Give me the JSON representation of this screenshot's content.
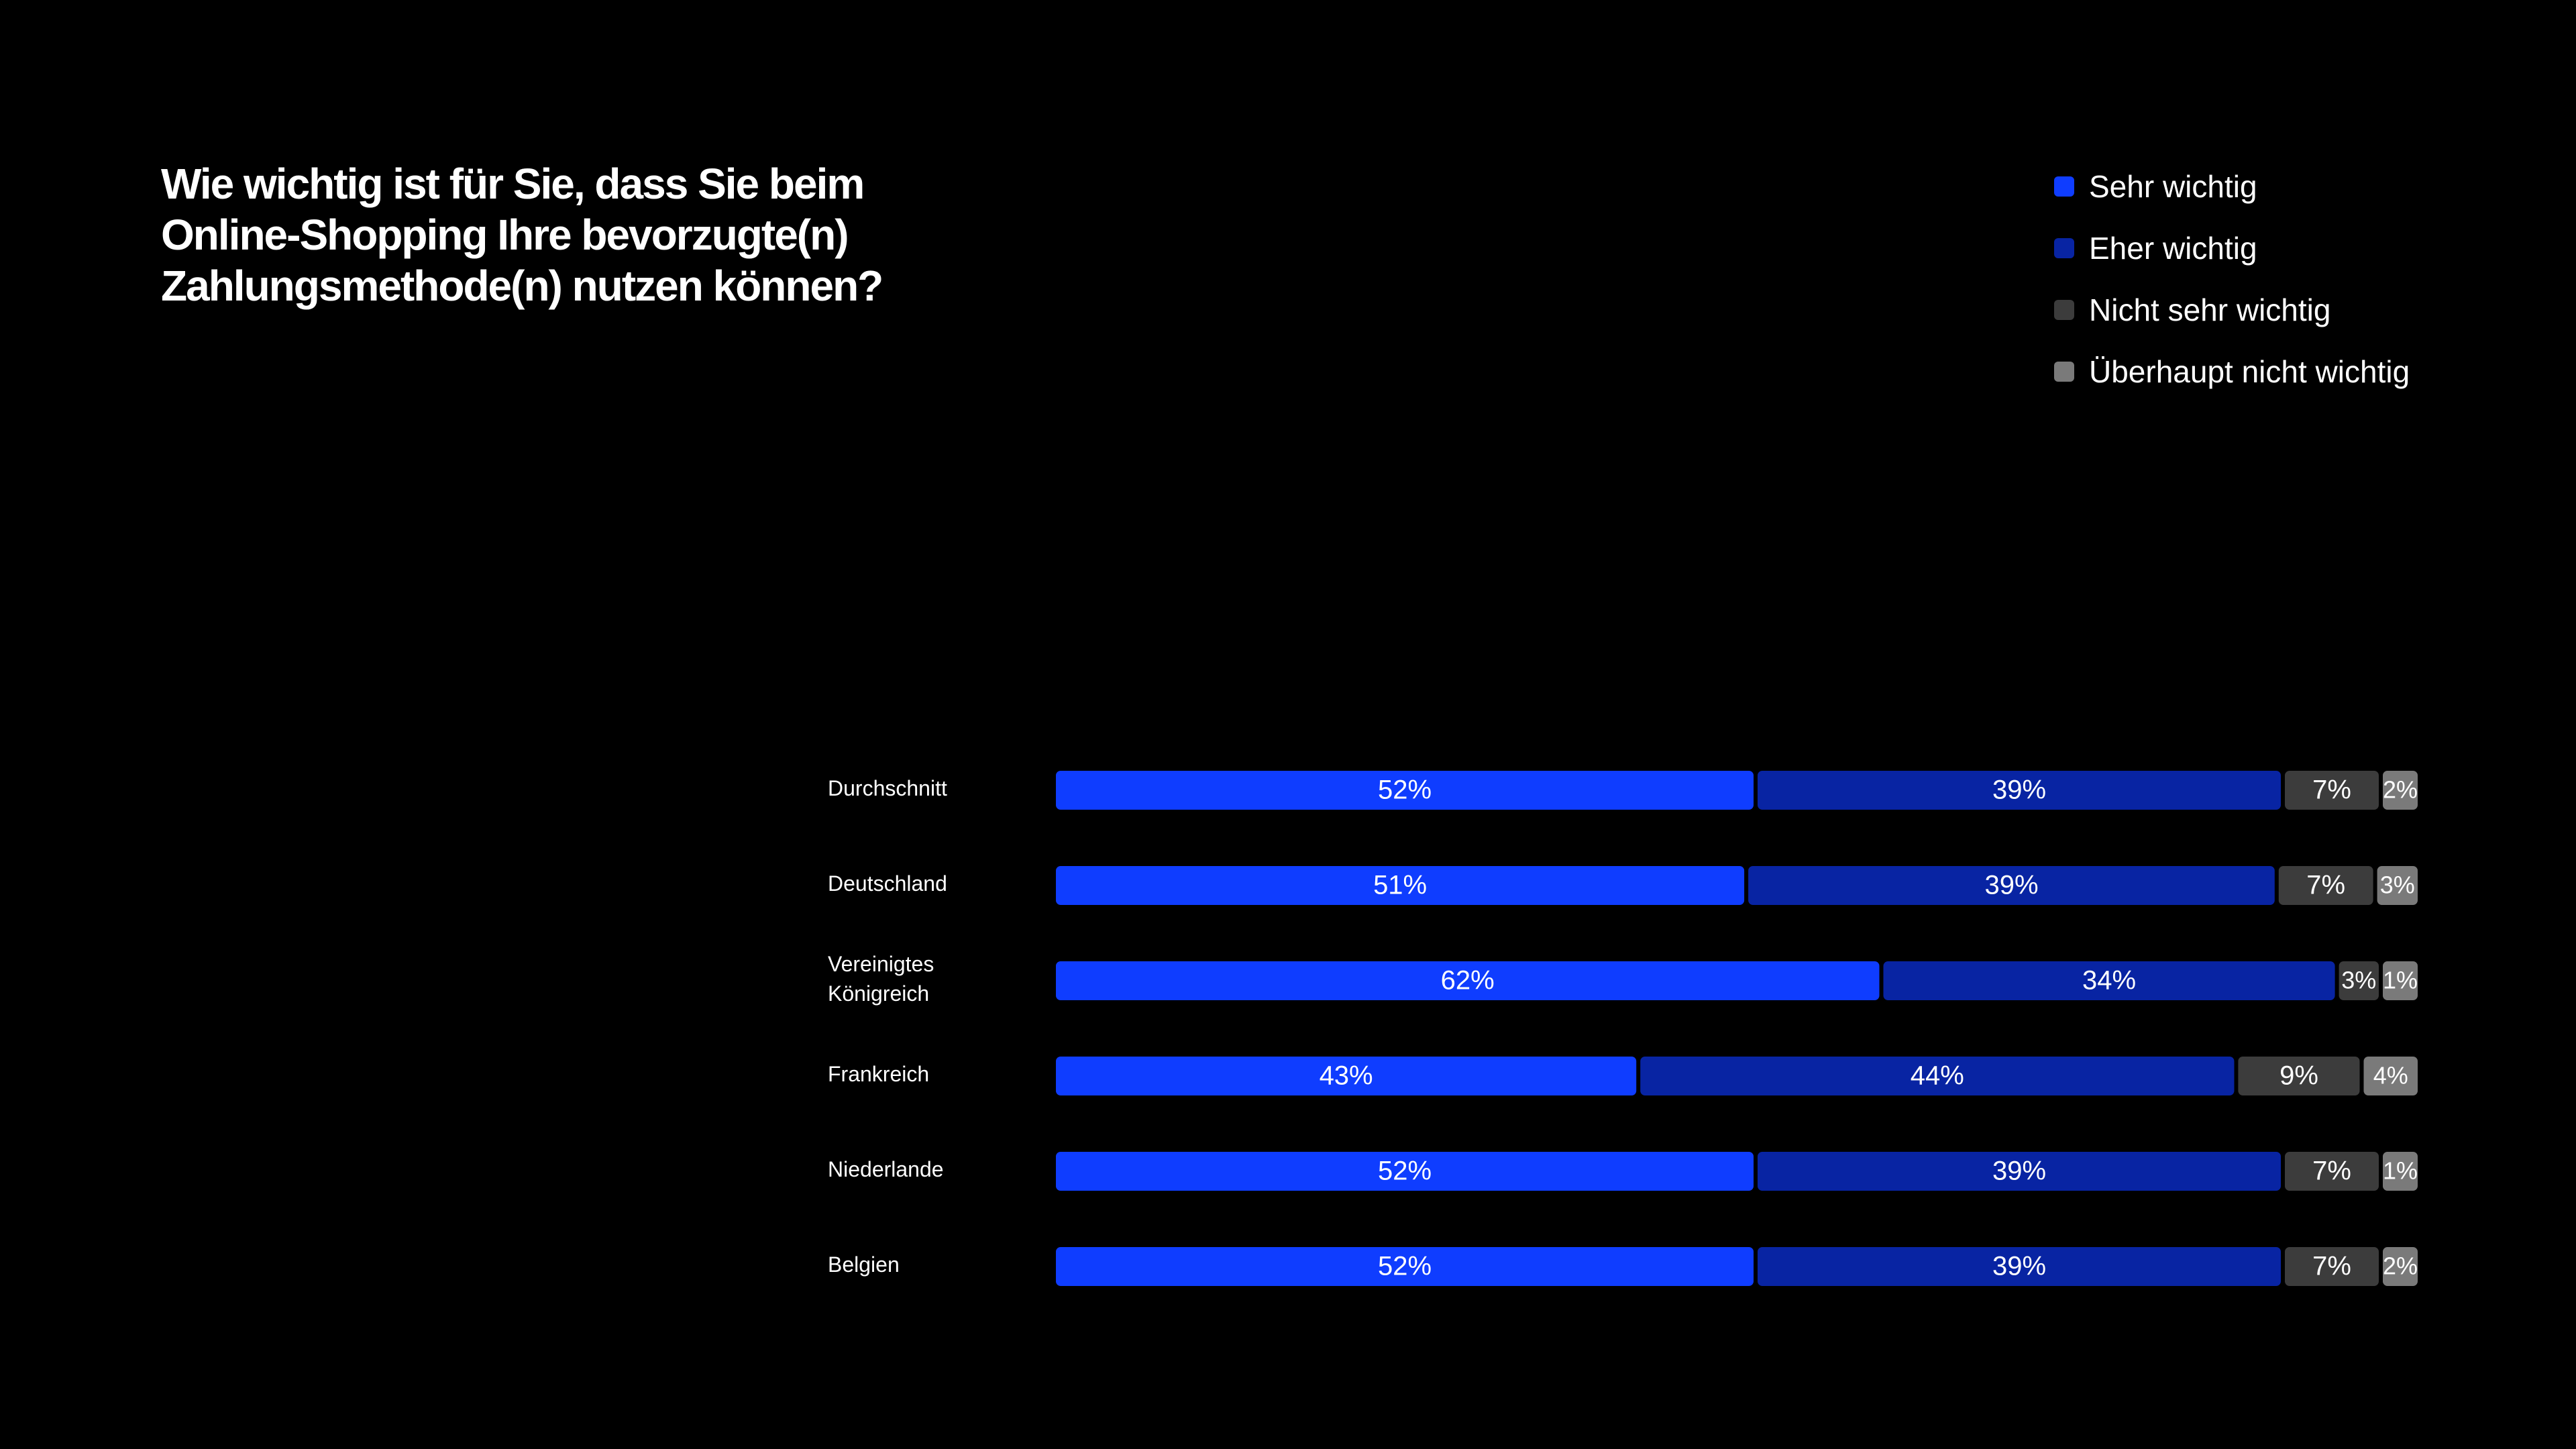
{
  "title": "Wie wichtig ist für Sie, dass Sie beim Online-Shopping Ihre bevorzugte(n) Zahlungsmethode(n) nutzen können?",
  "legend": [
    {
      "label": "Sehr wichtig",
      "color": "#0f3dff"
    },
    {
      "label": "Eher wichtig",
      "color": "#0824a3"
    },
    {
      "label": "Nicht sehr wichtig",
      "color": "#3c3c3c"
    },
    {
      "label": "Überhaupt nicht wichtig",
      "color": "#7a7a7a"
    }
  ],
  "chart_data": {
    "type": "bar",
    "orientation": "horizontal",
    "stacked": true,
    "normalized": true,
    "title": "Wie wichtig ist für Sie, dass Sie beim Online-Shopping Ihre bevorzugte(n) Zahlungsmethode(n) nutzen können?",
    "xlabel": "",
    "ylabel": "",
    "grid": false,
    "legend_position": "top-right",
    "categories": [
      "Durchschnitt",
      "Deutschland",
      "Vereinigtes Königreich",
      "Frankreich",
      "Niederlande",
      "Belgien"
    ],
    "category_lines": [
      [
        "Durchschnitt"
      ],
      [
        "Deutschland"
      ],
      [
        "Vereinigtes",
        "Königreich"
      ],
      [
        "Frankreich"
      ],
      [
        "Niederlande"
      ],
      [
        "Belgien"
      ]
    ],
    "series": [
      {
        "name": "Sehr wichtig",
        "color": "#0f3dff",
        "values": [
          52,
          51,
          62,
          43,
          52,
          52
        ],
        "labels": [
          "52%",
          "51%",
          "62%",
          "43%",
          "52%",
          "52%"
        ]
      },
      {
        "name": "Eher wichtig",
        "color": "#0824a3",
        "values": [
          39,
          39,
          34,
          44,
          39,
          39
        ],
        "labels": [
          "39%",
          "39%",
          "34%",
          "44%",
          "39%",
          "39%"
        ]
      },
      {
        "name": "Nicht sehr wichtig",
        "color": "#3c3c3c",
        "values": [
          7,
          7,
          3,
          9,
          7,
          7
        ],
        "labels": [
          "7%",
          "7%",
          "3%",
          "9%",
          "7%",
          "7%"
        ]
      },
      {
        "name": "Überhaupt nicht wichtig",
        "color": "#7a7a7a",
        "values": [
          2,
          3,
          1,
          4,
          1,
          2
        ],
        "labels": [
          "2%",
          "3%",
          "1%",
          "4%",
          "1%",
          "2%"
        ]
      }
    ]
  }
}
